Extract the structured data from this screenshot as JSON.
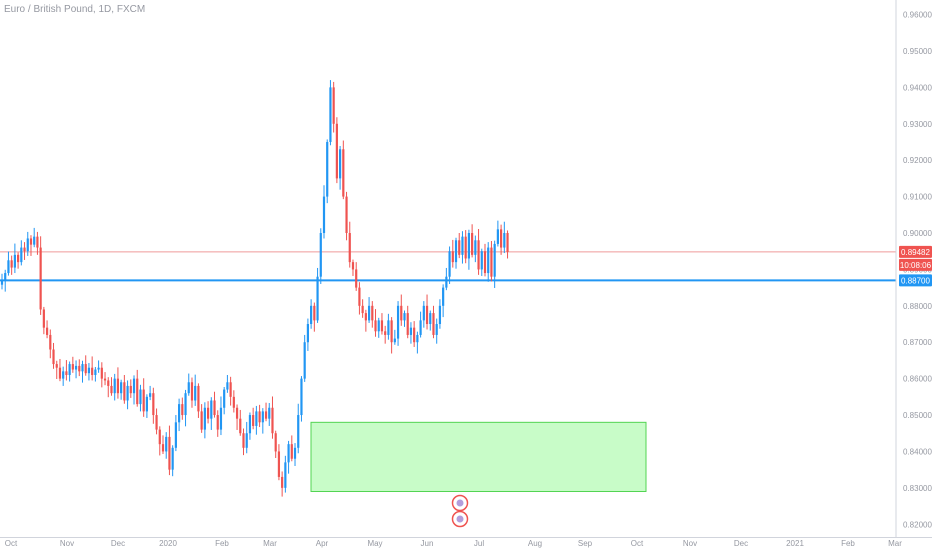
{
  "header": {
    "symbol_title": "Euro / British Pound, 1D, FXCM"
  },
  "colors": {
    "up": "#2196f3",
    "down": "#ef5350",
    "support_line": "#2196f3",
    "last_price_line": "#ef9a9a",
    "zone_fill": "#c8fcc8",
    "zone_stroke": "#52d452",
    "axis_text": "#9598a1",
    "last_price_label": "#ef5350",
    "level_label": "#2196f3"
  },
  "chart_data": {
    "type": "candlestick",
    "x_axis_labels": [
      "Oct",
      "Nov",
      "Dec",
      "2020",
      "Feb",
      "Mar",
      "Apr",
      "May",
      "Jun",
      "Jul",
      "Aug",
      "Sep",
      "Oct",
      "Nov",
      "Dec",
      "2021",
      "Feb",
      "Mar"
    ],
    "y_ticks": [
      "0.96000",
      "0.95000",
      "0.94000",
      "0.93000",
      "0.92000",
      "0.91000",
      "0.90000",
      "0.89000",
      "0.88000",
      "0.87000",
      "0.86000",
      "0.85000",
      "0.84000",
      "0.83000",
      "0.82000"
    ],
    "ylim": [
      0.8165,
      0.964
    ],
    "last_price": {
      "value": 0.89482,
      "label": "0.89482",
      "countdown": "10:08:06"
    },
    "support_level": {
      "value": 0.887,
      "label": "0.88700"
    },
    "target_zone": {
      "high": 0.848,
      "low": 0.829,
      "from": "2020-03-20",
      "to": "2020-10-01"
    },
    "series_close": [
      0.887,
      0.889,
      0.8925,
      0.8905,
      0.894,
      0.892,
      0.896,
      0.895,
      0.8985,
      0.8968,
      0.899,
      0.896,
      0.879,
      0.874,
      0.872,
      0.868,
      0.864,
      0.863,
      0.86,
      0.862,
      0.861,
      0.864,
      0.8625,
      0.8635,
      0.862,
      0.864,
      0.8615,
      0.863,
      0.861,
      0.8625,
      0.863,
      0.86,
      0.8595,
      0.858,
      0.856,
      0.86,
      0.856,
      0.859,
      0.854,
      0.858,
      0.856,
      0.86,
      0.853,
      0.857,
      0.851,
      0.855,
      0.856,
      0.85,
      0.846,
      0.842,
      0.84,
      0.844,
      0.835,
      0.841,
      0.848,
      0.853,
      0.85,
      0.856,
      0.859,
      0.854,
      0.858,
      0.851,
      0.846,
      0.852,
      0.849,
      0.854,
      0.85,
      0.846,
      0.852,
      0.857,
      0.859,
      0.855,
      0.852,
      0.849,
      0.845,
      0.841,
      0.845,
      0.85,
      0.847,
      0.851,
      0.848,
      0.851,
      0.849,
      0.852,
      0.845,
      0.84,
      0.833,
      0.83,
      0.837,
      0.842,
      0.838,
      0.841,
      0.85,
      0.86,
      0.87,
      0.875,
      0.88,
      0.876,
      0.888,
      0.9,
      0.91,
      0.925,
      0.94,
      0.93,
      0.915,
      0.923,
      0.91,
      0.9,
      0.892,
      0.89,
      0.885,
      0.88,
      0.878,
      0.876,
      0.88,
      0.876,
      0.873,
      0.876,
      0.873,
      0.872,
      0.876,
      0.87,
      0.871,
      0.88,
      0.876,
      0.878,
      0.872,
      0.874,
      0.87,
      0.872,
      0.876,
      0.88,
      0.875,
      0.878,
      0.872,
      0.875,
      0.88,
      0.885,
      0.888,
      0.895,
      0.892,
      0.898,
      0.894,
      0.899,
      0.893,
      0.9,
      0.894,
      0.898,
      0.89,
      0.895,
      0.889,
      0.896,
      0.888,
      0.897,
      0.901,
      0.896,
      0.9,
      0.8948
    ]
  }
}
